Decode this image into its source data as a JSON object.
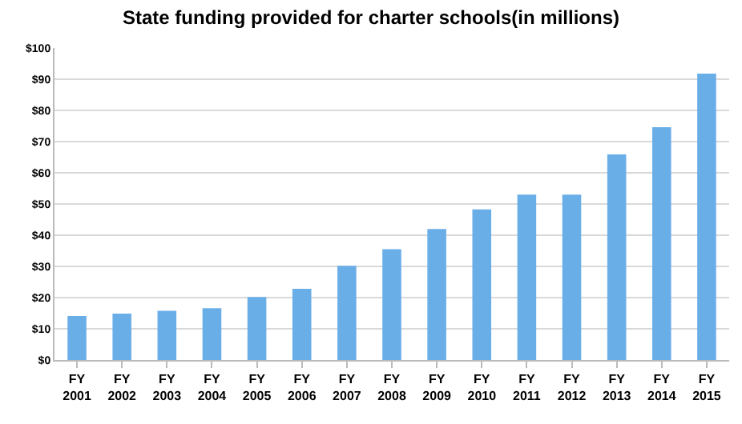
{
  "chart_data": {
    "type": "bar",
    "title": "State funding provided for charter schools(in millions)",
    "categories": [
      "FY 2001",
      "FY 2002",
      "FY 2003",
      "FY 2004",
      "FY 2005",
      "FY 2006",
      "FY 2007",
      "FY 2008",
      "FY 2009",
      "FY 2010",
      "FY 2011",
      "FY 2012",
      "FY 2013",
      "FY 2014",
      "FY 2015"
    ],
    "values": [
      14.1,
      14.9,
      15.8,
      16.6,
      20.2,
      22.8,
      30.2,
      35.5,
      42,
      48.3,
      53,
      53,
      65.9,
      74.6,
      91.8
    ],
    "color": "#6aaee8",
    "ylim": [
      0,
      100
    ],
    "yticks": [
      {
        "value": 0,
        "label": "$0"
      },
      {
        "value": 10,
        "label": "$10"
      },
      {
        "value": 20,
        "label": "$20"
      },
      {
        "value": 30,
        "label": "$30"
      },
      {
        "value": 40,
        "label": "$40"
      },
      {
        "value": 50,
        "label": "$50"
      },
      {
        "value": 60,
        "label": "$60"
      },
      {
        "value": 70,
        "label": "$70"
      },
      {
        "value": 80,
        "label": "$80"
      },
      {
        "value": 90,
        "label": "$90"
      },
      {
        "value": 100,
        "label": "$100"
      }
    ],
    "grid": "y",
    "legend": false
  }
}
